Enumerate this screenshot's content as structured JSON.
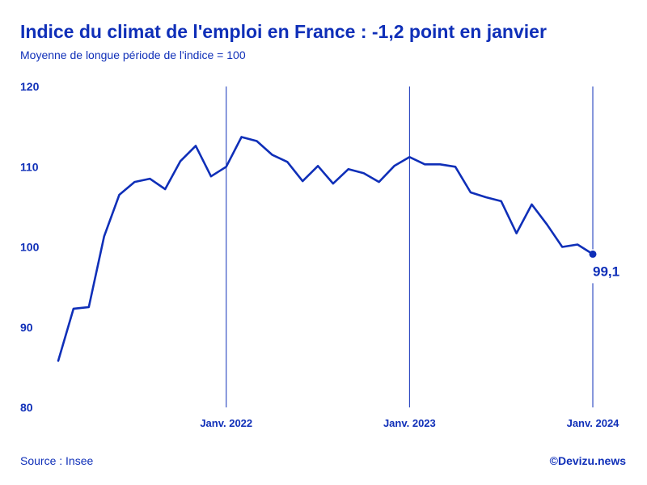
{
  "header": {
    "title": "Indice du climat de l'emploi en France : -1,2 point en janvier",
    "subtitle": "Moyenne de longue période de l'indice = 100"
  },
  "footer": {
    "source": "Source : Insee",
    "credit": "©Devizu.news"
  },
  "colors": {
    "line": "#0f2fb8",
    "text": "#0f2fb8",
    "background": "#ffffff"
  },
  "chart_data": {
    "type": "line",
    "title": "Indice du climat de l'emploi en France : -1,2 point en janvier",
    "subtitle": "Moyenne de longue période de l'indice = 100",
    "xlabel": "",
    "ylabel": "",
    "ylim": [
      80,
      120
    ],
    "yticks": [
      80,
      90,
      100,
      110,
      120
    ],
    "ytick_labels": [
      "80",
      "90",
      "100",
      "110",
      "120"
    ],
    "xlim": [
      "2021-02",
      "2024-01"
    ],
    "xticks": [
      {
        "x": "2022-01",
        "label": "Janv. 2022"
      },
      {
        "x": "2023-01",
        "label": "Janv. 2023"
      },
      {
        "x": "2024-01",
        "label": "Janv. 2024"
      }
    ],
    "grid": false,
    "legend": "none",
    "series": [
      {
        "x": [
          "2021-02",
          "2021-03",
          "2021-04",
          "2021-05",
          "2021-06",
          "2021-07",
          "2021-08",
          "2021-09",
          "2021-10",
          "2021-11",
          "2021-12",
          "2022-01",
          "2022-02",
          "2022-03",
          "2022-04",
          "2022-05",
          "2022-06",
          "2022-07",
          "2022-08",
          "2022-09",
          "2022-10",
          "2022-11",
          "2022-12",
          "2023-01",
          "2023-02",
          "2023-03",
          "2023-04",
          "2023-05",
          "2023-06",
          "2023-07",
          "2023-08",
          "2023-09",
          "2023-10",
          "2023-11",
          "2023-12",
          "2024-01"
        ],
        "values": [
          85.8,
          92.3,
          92.5,
          101.3,
          106.5,
          108.1,
          108.5,
          107.2,
          110.7,
          112.6,
          108.8,
          110.0,
          113.7,
          113.2,
          111.5,
          110.6,
          108.2,
          110.1,
          107.9,
          109.7,
          109.2,
          108.1,
          110.1,
          111.2,
          110.3,
          110.3,
          110.0,
          106.8,
          106.2,
          105.7,
          101.7,
          105.3,
          102.8,
          100.0,
          100.3,
          99.1
        ]
      }
    ],
    "annotations": [
      {
        "x": "2024-01",
        "y": 99.1,
        "text": "99,1"
      }
    ]
  }
}
